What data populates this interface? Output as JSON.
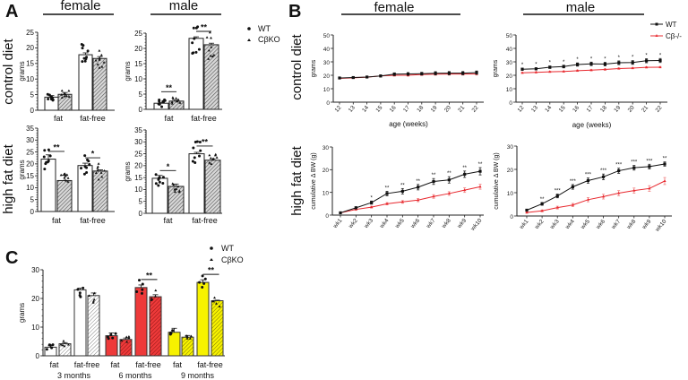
{
  "panel_labels": {
    "a": "A",
    "b": "B",
    "c": "C"
  },
  "headers": {
    "female": "female",
    "male": "male"
  },
  "row_labels": {
    "control": "control diet",
    "high_fat": "high fat diet"
  },
  "legend_a": {
    "wt": "WT",
    "ko": "CβKO"
  },
  "legend_b": {
    "wt": "WT",
    "ko": "Cβ-/-"
  },
  "legend_c": {
    "wt": "WT",
    "ko": "CβKO"
  },
  "colors": {
    "wt_line": "#111111",
    "ko_line": "#e8282e",
    "red": "#ee3a3a",
    "yellow": "#f7f200"
  },
  "chart_data": [
    {
      "id": "A-female-control",
      "type": "bar",
      "ylabel": "grams",
      "ylim": [
        0,
        25
      ],
      "yticks": [
        0,
        5,
        10,
        15,
        20,
        25
      ],
      "categories": [
        "fat",
        "fat-free"
      ],
      "series": [
        {
          "name": "WT",
          "values": [
            4.2,
            17.8
          ],
          "error": [
            0.5,
            0.6
          ]
        },
        {
          "name": "CβKO",
          "values": [
            5.1,
            16.6
          ],
          "error": [
            0.6,
            0.6
          ]
        }
      ],
      "significance": [
        "",
        ""
      ]
    },
    {
      "id": "A-male-control",
      "type": "bar",
      "ylabel": "grams",
      "ylim": [
        0,
        25
      ],
      "yticks": [
        0,
        5,
        10,
        15,
        20,
        25
      ],
      "categories": [
        "fat",
        "fat-free"
      ],
      "series": [
        {
          "name": "WT",
          "values": [
            2.0,
            23.3
          ],
          "error": [
            0.2,
            0.5
          ]
        },
        {
          "name": "CβKO",
          "values": [
            2.7,
            21.2
          ],
          "error": [
            0.3,
            0.5
          ]
        }
      ],
      "significance": [
        "**",
        "**"
      ]
    },
    {
      "id": "A-female-highfat",
      "type": "bar",
      "ylabel": "grams",
      "ylim": [
        0,
        35
      ],
      "yticks": [
        0,
        5,
        10,
        15,
        20,
        25,
        30,
        35
      ],
      "categories": [
        "fat",
        "fat-free"
      ],
      "series": [
        {
          "name": "WT",
          "values": [
            22.0,
            19.3
          ],
          "error": [
            1.8,
            1.0
          ]
        },
        {
          "name": "CβKO",
          "values": [
            13.0,
            17.0
          ],
          "error": [
            2.2,
            0.5
          ]
        }
      ],
      "significance": [
        "**",
        "*"
      ]
    },
    {
      "id": "A-male-highfat",
      "type": "bar",
      "ylabel": "grams",
      "ylim": [
        0,
        35
      ],
      "yticks": [
        0,
        5,
        10,
        15,
        20,
        25,
        30,
        35
      ],
      "categories": [
        "fat",
        "fat-free"
      ],
      "series": [
        {
          "name": "WT",
          "values": [
            14.7,
            25.0
          ],
          "error": [
            1.2,
            0.6
          ]
        },
        {
          "name": "CβKO",
          "values": [
            11.3,
            22.3
          ],
          "error": [
            1.0,
            0.6
          ]
        }
      ],
      "significance": [
        "*",
        "**"
      ]
    },
    {
      "id": "B-female-control",
      "type": "line",
      "xlabel": "age (weeks)",
      "ylabel": "grams",
      "ylim": [
        0,
        50
      ],
      "yticks": [
        0,
        10,
        20,
        30,
        40,
        50
      ],
      "x": [
        "12",
        "13",
        "14",
        "15",
        "16",
        "17",
        "18",
        "19",
        "20",
        "21",
        "22"
      ],
      "series": [
        {
          "name": "WT",
          "values": [
            18,
            18.3,
            18.7,
            19.5,
            20.8,
            21,
            21.2,
            21.5,
            21.6,
            21.6,
            22
          ],
          "error": [
            0.6,
            0.6,
            0.7,
            0.8,
            1,
            1,
            1,
            1.2,
            1.2,
            1.2,
            1.2
          ]
        },
        {
          "name": "Cβ-/-",
          "values": [
            17.7,
            18.1,
            18.6,
            19.5,
            20,
            20,
            20.6,
            20.8,
            20.9,
            20.9,
            21
          ],
          "error": [
            0.5,
            0.5,
            0.5,
            0.6,
            0.7,
            0.7,
            0.8,
            0.8,
            0.8,
            0.8,
            0.8
          ]
        }
      ],
      "significance": [
        "",
        "",
        "",
        "",
        "",
        "",
        "",
        "",
        "",
        "",
        ""
      ]
    },
    {
      "id": "B-male-control",
      "type": "line",
      "xlabel": "age (weeks)",
      "ylabel": "grams",
      "ylim": [
        0,
        50
      ],
      "yticks": [
        0,
        10,
        20,
        30,
        40,
        50
      ],
      "x": [
        "12",
        "13",
        "14",
        "15",
        "16",
        "17",
        "18",
        "19",
        "20",
        "21",
        "22"
      ],
      "series": [
        {
          "name": "WT",
          "values": [
            24.5,
            24.8,
            26,
            26.5,
            28,
            28.5,
            28.3,
            29.3,
            29.5,
            30.8,
            31
          ],
          "error": [
            0.8,
            0.8,
            0.9,
            1,
            1.2,
            1.3,
            1.3,
            1.4,
            1.4,
            1.5,
            1.5
          ]
        },
        {
          "name": "Cβ-/-",
          "values": [
            21.8,
            22.2,
            22.6,
            22.8,
            23.4,
            23.8,
            24.3,
            25,
            25.3,
            25.9,
            26
          ],
          "error": [
            0.4,
            0.4,
            0.4,
            0.4,
            0.5,
            0.5,
            0.5,
            0.5,
            0.5,
            0.5,
            0.5
          ]
        }
      ],
      "significance": [
        "*",
        "*",
        "*",
        "*",
        "*",
        "*",
        "*",
        "*",
        "*",
        "*",
        "*"
      ]
    },
    {
      "id": "B-female-highfat",
      "type": "line",
      "xlabel": "",
      "ylabel": "cumulative Δ BW (g)",
      "ylim": [
        0,
        30
      ],
      "yticks": [
        0,
        10,
        20,
        30
      ],
      "x": [
        "wk1",
        "wk2",
        "wk3",
        "wk4",
        "wk5",
        "wk6",
        "wk7",
        "wk8",
        "wk9",
        "wk10"
      ],
      "series": [
        {
          "name": "WT",
          "values": [
            1,
            3.2,
            5.5,
            9.5,
            10.5,
            12.3,
            14.8,
            15.5,
            18,
            19.3
          ],
          "error": [
            0.3,
            0.5,
            0.7,
            1,
            1.2,
            1.2,
            1.3,
            1.4,
            1.4,
            1.6
          ]
        },
        {
          "name": "Cβ-/-",
          "values": [
            1,
            2.5,
            3.5,
            5,
            5.8,
            6.6,
            8.2,
            9.5,
            11,
            12.5
          ],
          "error": [
            0.3,
            0.4,
            0.4,
            0.5,
            0.6,
            0.7,
            0.8,
            0.8,
            1,
            1.1
          ]
        }
      ],
      "significance": [
        "",
        "",
        "*",
        "**",
        "**",
        "**",
        "**",
        "**",
        "**",
        "**"
      ]
    },
    {
      "id": "B-male-highfat",
      "type": "line",
      "xlabel": "",
      "ylabel": "cumulative Δ BW (g)",
      "ylim": [
        0,
        30
      ],
      "yticks": [
        0,
        10,
        20,
        30
      ],
      "x": [
        "wk1",
        "wk2",
        "wk3",
        "wk4",
        "wk5",
        "wk6",
        "wk7",
        "wk8",
        "wk9",
        "wk10"
      ],
      "series": [
        {
          "name": "WT",
          "values": [
            2.5,
            5.2,
            8.6,
            12.5,
            15.2,
            16.8,
            19.4,
            20.7,
            21.2,
            22.3
          ],
          "error": [
            0.4,
            0.6,
            0.8,
            1,
            1.1,
            1.2,
            1.1,
            1,
            1,
            0.9
          ]
        },
        {
          "name": "Cβ-/-",
          "values": [
            1.5,
            2.2,
            3.6,
            4.7,
            7,
            8.3,
            9.8,
            10.9,
            11.8,
            15
          ],
          "error": [
            0.3,
            0.4,
            0.6,
            0.7,
            0.9,
            1,
            1.1,
            1.1,
            1.2,
            1.5
          ]
        }
      ],
      "significance": [
        "",
        "**",
        "***",
        "***",
        "***",
        "***",
        "***",
        "***",
        "***",
        "**"
      ]
    },
    {
      "id": "C-age",
      "type": "bar",
      "ylabel": "grams",
      "ylim": [
        0,
        30
      ],
      "yticks": [
        0,
        10,
        20,
        30
      ],
      "groups": [
        "3 months",
        "6 months",
        "9 months"
      ],
      "categories": [
        "fat",
        "fat-free"
      ],
      "series": [
        {
          "name": "WT",
          "values": [
            [
              3.0,
              23.0
            ],
            [
              7.0,
              23.8
            ],
            [
              8.2,
              25.6
            ]
          ],
          "error": [
            [
              0.5,
              0.6
            ],
            [
              1.0,
              0.9
            ],
            [
              1.4,
              0.9
            ]
          ]
        },
        {
          "name": "CβKO",
          "values": [
            [
              4.2,
              21.0
            ],
            [
              5.7,
              20.6
            ],
            [
              6.5,
              19.2
            ]
          ],
          "error": [
            [
              0.4,
              0.9
            ],
            [
              0.5,
              0.7
            ],
            [
              0.6,
              0.2
            ]
          ]
        }
      ],
      "significance": [
        [
          "",
          ""
        ],
        [
          "",
          "**"
        ],
        [
          "",
          "**"
        ]
      ]
    }
  ]
}
